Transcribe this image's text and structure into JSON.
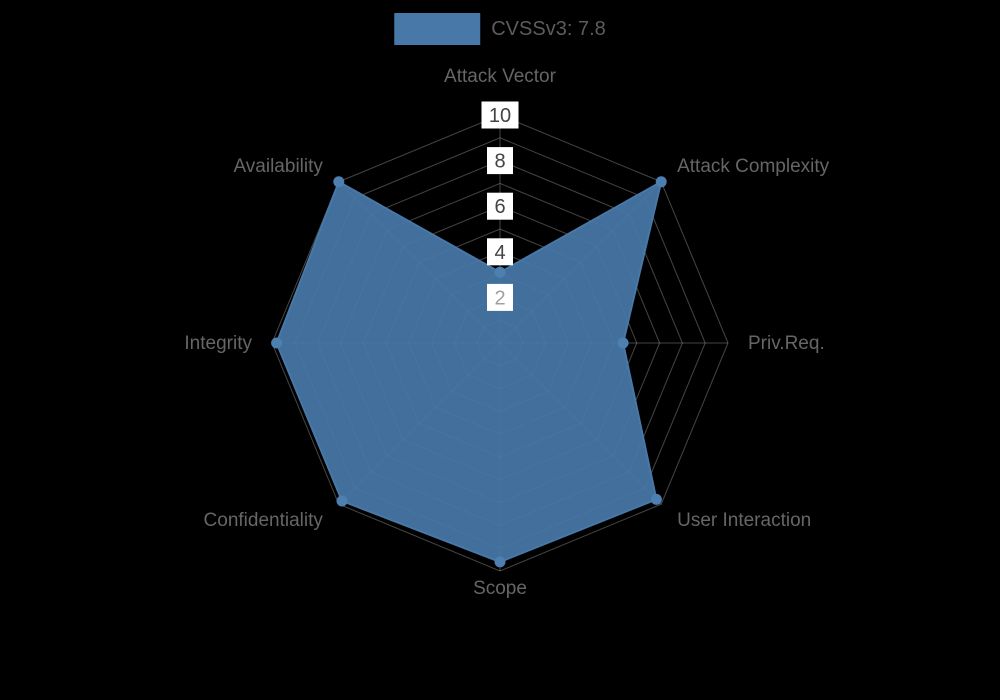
{
  "legend": {
    "label": "CVSSv3: 7.8"
  },
  "colors": {
    "background": "#000000",
    "series_fill": "#4878a8",
    "series_stroke": "#4878a8",
    "series_point": "#4d80b0",
    "grid": "#9a9a9a",
    "axis_label": "#666666",
    "legend_text": "#5c5c5c",
    "tick_label": "#444444",
    "tick_label_muted": "#9f9f9f",
    "tick_backdrop": "#ffffff"
  },
  "chart_data": {
    "type": "radar",
    "title": "CVSSv3: 7.8",
    "categories": [
      "Attack Vector",
      "Attack Complexity",
      "Priv.Req.",
      "User Interaction",
      "Scope",
      "Confidentiality",
      "Integrity",
      "Availability"
    ],
    "series": [
      {
        "name": "CVSSv3: 7.8",
        "values": [
          3.1,
          10,
          5.4,
          9.7,
          9.6,
          9.8,
          9.8,
          10
        ]
      }
    ],
    "axis_range": [
      0,
      10
    ],
    "grid": true,
    "grid_rings": 10,
    "tick_labels": [
      2,
      4,
      6,
      8,
      10
    ],
    "legend_position": "top"
  }
}
